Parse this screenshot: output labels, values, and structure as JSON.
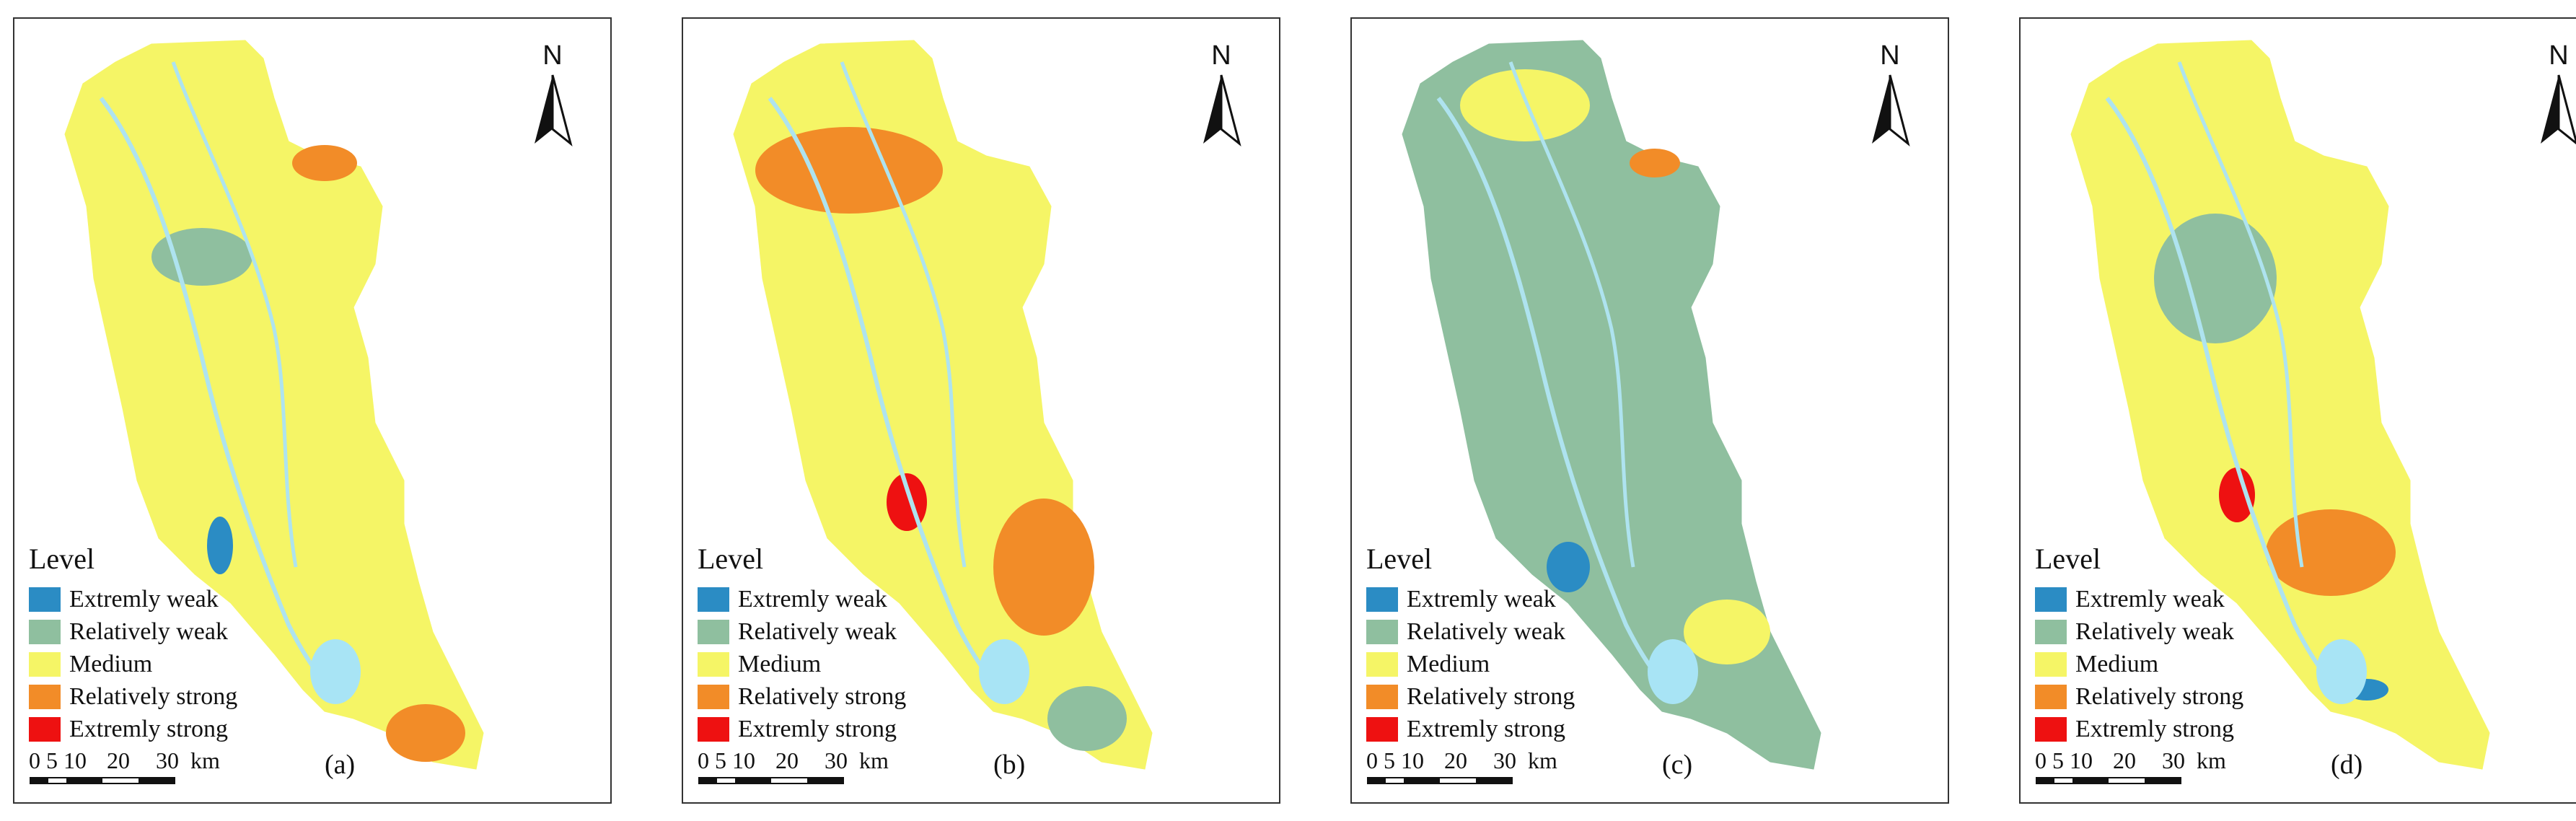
{
  "north_label": "N",
  "legend_title": "Level",
  "colors": {
    "extremly_weak": "#2b8cc4",
    "relatively_weak": "#8fbf9f",
    "medium": "#f5f566",
    "relatively_strong": "#f28c28",
    "extremly_strong": "#ee1111",
    "river": "#aee3ef",
    "lake": "#a8e4f5"
  },
  "legend": [
    {
      "key": "extremly_weak",
      "label": "Extremly weak"
    },
    {
      "key": "relatively_weak",
      "label": "Relatively weak"
    },
    {
      "key": "medium",
      "label": "Medium"
    },
    {
      "key": "relatively_strong",
      "label": "Relatively strong"
    },
    {
      "key": "extremly_strong",
      "label": "Extremly strong"
    }
  ],
  "scale": {
    "ticks": [
      "0",
      "5",
      "10",
      "20",
      "30"
    ],
    "unit": "km"
  },
  "panels": [
    {
      "label": "(a)",
      "base": "medium",
      "patches": [
        "relatively_weak",
        "relatively_strong",
        "relatively_strong",
        "extremly_weak"
      ]
    },
    {
      "label": "(b)",
      "base": "medium",
      "patches": [
        "relatively_strong",
        "relatively_strong",
        "extremly_strong",
        "relatively_weak"
      ]
    },
    {
      "label": "(c)",
      "base": "relatively_weak",
      "patches": [
        "medium",
        "extremly_weak",
        "relatively_strong",
        "medium"
      ]
    },
    {
      "label": "(d)",
      "base": "medium",
      "patches": [
        "relatively_weak",
        "relatively_strong",
        "extremly_strong",
        "extremly_weak"
      ]
    }
  ]
}
